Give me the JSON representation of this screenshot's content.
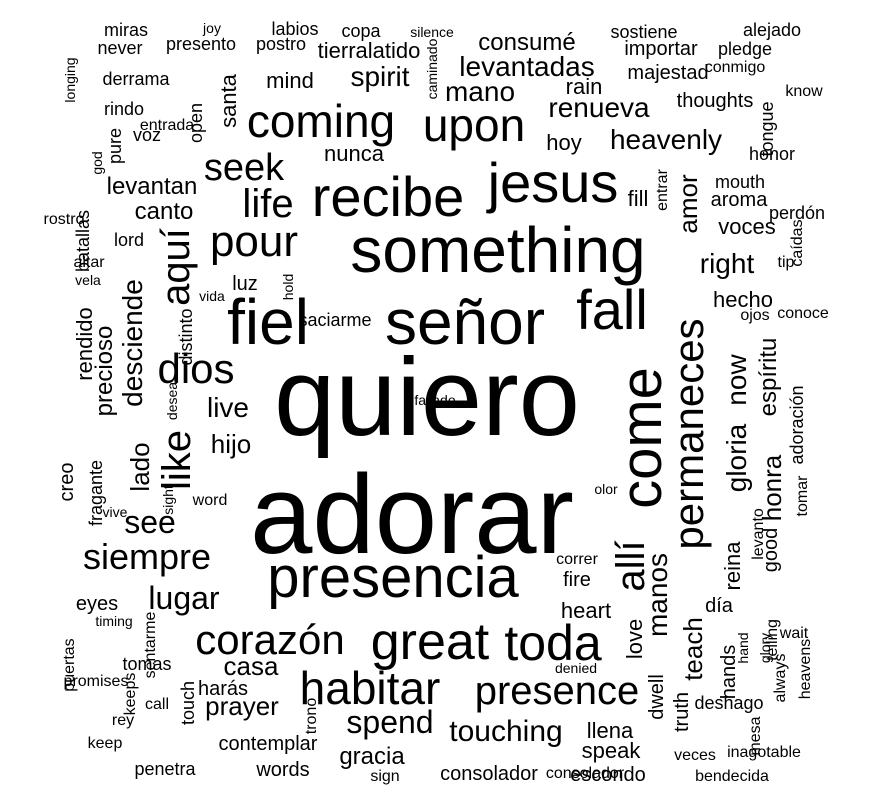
{
  "cloud": {
    "text_color": "#000000",
    "background": "#ffffff",
    "words": [
      {
        "text": "quiero",
        "size": 110,
        "orientation": "h"
      },
      {
        "text": "adorar",
        "size": 112,
        "orientation": "h"
      },
      {
        "text": "something",
        "size": 64,
        "orientation": "h"
      },
      {
        "text": "señor",
        "size": 64,
        "orientation": "h"
      },
      {
        "text": "fiel",
        "size": 64,
        "orientation": "h"
      },
      {
        "text": "presencia",
        "size": 58,
        "orientation": "h"
      },
      {
        "text": "jesus",
        "size": 56,
        "orientation": "h"
      },
      {
        "text": "recibe",
        "size": 56,
        "orientation": "h"
      },
      {
        "text": "come",
        "size": 58,
        "orientation": "v"
      },
      {
        "text": "permaneces",
        "size": 42,
        "orientation": "v"
      },
      {
        "text": "fall",
        "size": 56,
        "orientation": "h"
      },
      {
        "text": "coming",
        "size": 46,
        "orientation": "h"
      },
      {
        "text": "upon",
        "size": 46,
        "orientation": "h"
      },
      {
        "text": "great",
        "size": 52,
        "orientation": "h"
      },
      {
        "text": "toda",
        "size": 50,
        "orientation": "h"
      },
      {
        "text": "habitar",
        "size": 46,
        "orientation": "h"
      },
      {
        "text": "corazón",
        "size": 42,
        "orientation": "h"
      },
      {
        "text": "pour",
        "size": 44,
        "orientation": "h"
      },
      {
        "text": "life",
        "size": 40,
        "orientation": "h"
      },
      {
        "text": "dios",
        "size": 42,
        "orientation": "h"
      },
      {
        "text": "like",
        "size": 40,
        "orientation": "v"
      },
      {
        "text": "aquí",
        "size": 40,
        "orientation": "v"
      },
      {
        "text": "presence",
        "size": 40,
        "orientation": "h"
      },
      {
        "text": "allí",
        "size": 40,
        "orientation": "v"
      },
      {
        "text": "seek",
        "size": 38,
        "orientation": "h"
      },
      {
        "text": "siempre",
        "size": 36,
        "orientation": "h"
      },
      {
        "text": "see",
        "size": 32,
        "orientation": "h"
      },
      {
        "text": "spend",
        "size": 32,
        "orientation": "h"
      },
      {
        "text": "touching",
        "size": 30,
        "orientation": "h"
      },
      {
        "text": "lugar",
        "size": 32,
        "orientation": "h"
      },
      {
        "text": "renueva",
        "size": 28,
        "orientation": "h"
      },
      {
        "text": "heavenly",
        "size": 28,
        "orientation": "h"
      },
      {
        "text": "levantadas",
        "size": 28,
        "orientation": "h"
      },
      {
        "text": "spirit",
        "size": 28,
        "orientation": "h"
      },
      {
        "text": "mano",
        "size": 28,
        "orientation": "h"
      },
      {
        "text": "consumé",
        "size": 24,
        "orientation": "h"
      },
      {
        "text": "gloria",
        "size": 28,
        "orientation": "v"
      },
      {
        "text": "now",
        "size": 28,
        "orientation": "v"
      },
      {
        "text": "manos",
        "size": 28,
        "orientation": "v"
      },
      {
        "text": "desciende",
        "size": 28,
        "orientation": "v"
      },
      {
        "text": "live",
        "size": 28,
        "orientation": "h"
      },
      {
        "text": "right",
        "size": 28,
        "orientation": "h"
      },
      {
        "text": "amor",
        "size": 26,
        "orientation": "v"
      },
      {
        "text": "teach",
        "size": 26,
        "orientation": "v"
      },
      {
        "text": "honra",
        "size": 26,
        "orientation": "v"
      },
      {
        "text": "espíritu",
        "size": 24,
        "orientation": "v"
      },
      {
        "text": "casa",
        "size": 26,
        "orientation": "h"
      },
      {
        "text": "prayer",
        "size": 26,
        "orientation": "h"
      },
      {
        "text": "hijo",
        "size": 26,
        "orientation": "h"
      },
      {
        "text": "lado",
        "size": 26,
        "orientation": "v"
      },
      {
        "text": "precioso",
        "size": 24,
        "orientation": "v"
      },
      {
        "text": "canto",
        "size": 24,
        "orientation": "h"
      },
      {
        "text": "levantan",
        "size": 24,
        "orientation": "h"
      },
      {
        "text": "nunca",
        "size": 22,
        "orientation": "h"
      },
      {
        "text": "gracia",
        "size": 24,
        "orientation": "h"
      },
      {
        "text": "llena",
        "size": 22,
        "orientation": "h"
      },
      {
        "text": "heart",
        "size": 22,
        "orientation": "h"
      },
      {
        "text": "speak",
        "size": 22,
        "orientation": "h"
      },
      {
        "text": "santa",
        "size": 22,
        "orientation": "v"
      },
      {
        "text": "reina",
        "size": 22,
        "orientation": "v"
      },
      {
        "text": "hecho",
        "size": 22,
        "orientation": "h"
      },
      {
        "text": "voces",
        "size": 22,
        "orientation": "h"
      },
      {
        "text": "aroma",
        "size": 20,
        "orientation": "h"
      },
      {
        "text": "mouth",
        "size": 18,
        "orientation": "h"
      },
      {
        "text": "thoughts",
        "size": 20,
        "orientation": "h"
      },
      {
        "text": "majestad",
        "size": 20,
        "orientation": "h"
      },
      {
        "text": "importar",
        "size": 20,
        "orientation": "h"
      },
      {
        "text": "tierralatido",
        "size": 22,
        "orientation": "h"
      },
      {
        "text": "mind",
        "size": 22,
        "orientation": "h"
      },
      {
        "text": "rain",
        "size": 22,
        "orientation": "h"
      },
      {
        "text": "hoy",
        "size": 22,
        "orientation": "h"
      },
      {
        "text": "fill",
        "size": 22,
        "orientation": "h"
      },
      {
        "text": "luz",
        "size": 20,
        "orientation": "h"
      },
      {
        "text": "rendido",
        "size": 22,
        "orientation": "v"
      },
      {
        "text": "love",
        "size": 22,
        "orientation": "v"
      },
      {
        "text": "dwell",
        "size": 20,
        "orientation": "v"
      },
      {
        "text": "truth",
        "size": 20,
        "orientation": "v"
      },
      {
        "text": "fire",
        "size": 20,
        "orientation": "h"
      },
      {
        "text": "día",
        "size": 20,
        "orientation": "h"
      },
      {
        "text": "hands",
        "size": 20,
        "orientation": "v"
      },
      {
        "text": "good",
        "size": 20,
        "orientation": "v"
      },
      {
        "text": "adoración",
        "size": 18,
        "orientation": "v"
      },
      {
        "text": "contemplar",
        "size": 20,
        "orientation": "h"
      },
      {
        "text": "words",
        "size": 20,
        "orientation": "h"
      },
      {
        "text": "consolador",
        "size": 20,
        "orientation": "h"
      },
      {
        "text": "escondo",
        "size": 20,
        "orientation": "h"
      },
      {
        "text": "deshago",
        "size": 18,
        "orientation": "h"
      },
      {
        "text": "touch",
        "size": 18,
        "orientation": "v"
      },
      {
        "text": "harás",
        "size": 20,
        "orientation": "h"
      },
      {
        "text": "tomas",
        "size": 18,
        "orientation": "h"
      },
      {
        "text": "eyes",
        "size": 20,
        "orientation": "h"
      },
      {
        "text": "penetra",
        "size": 18,
        "orientation": "h"
      },
      {
        "text": "saciarme",
        "size": 18,
        "orientation": "h"
      },
      {
        "text": "creo",
        "size": 20,
        "orientation": "v"
      },
      {
        "text": "fragante",
        "size": 18,
        "orientation": "v"
      },
      {
        "text": "distinto",
        "size": 18,
        "orientation": "v"
      },
      {
        "text": "lord",
        "size": 18,
        "orientation": "h"
      },
      {
        "text": "voz",
        "size": 18,
        "orientation": "h"
      },
      {
        "text": "open",
        "size": 18,
        "orientation": "v"
      },
      {
        "text": "batallas",
        "size": 18,
        "orientation": "v"
      },
      {
        "text": "pure",
        "size": 18,
        "orientation": "v"
      },
      {
        "text": "rindo",
        "size": 18,
        "orientation": "h"
      },
      {
        "text": "derrama",
        "size": 18,
        "orientation": "h"
      },
      {
        "text": "presento",
        "size": 18,
        "orientation": "h"
      },
      {
        "text": "postro",
        "size": 18,
        "orientation": "h"
      },
      {
        "text": "copa",
        "size": 18,
        "orientation": "h"
      },
      {
        "text": "miras",
        "size": 18,
        "orientation": "h"
      },
      {
        "text": "never",
        "size": 18,
        "orientation": "h"
      },
      {
        "text": "labios",
        "size": 18,
        "orientation": "h"
      },
      {
        "text": "sostiene",
        "size": 18,
        "orientation": "h"
      },
      {
        "text": "alejado",
        "size": 18,
        "orientation": "h"
      },
      {
        "text": "pledge",
        "size": 18,
        "orientation": "h"
      },
      {
        "text": "conmigo",
        "size": 16,
        "orientation": "h"
      },
      {
        "text": "know",
        "size": 16,
        "orientation": "h"
      },
      {
        "text": "tongue",
        "size": 18,
        "orientation": "v"
      },
      {
        "text": "honor",
        "size": 18,
        "orientation": "h"
      },
      {
        "text": "perdón",
        "size": 18,
        "orientation": "h"
      },
      {
        "text": "caídas",
        "size": 16,
        "orientation": "v"
      },
      {
        "text": "tip",
        "size": 16,
        "orientation": "h"
      },
      {
        "text": "ojos",
        "size": 16,
        "orientation": "h"
      },
      {
        "text": "conoce",
        "size": 16,
        "orientation": "h"
      },
      {
        "text": "tomar",
        "size": 16,
        "orientation": "v"
      },
      {
        "text": "levanto",
        "size": 16,
        "orientation": "v"
      },
      {
        "text": "wait",
        "size": 16,
        "orientation": "h"
      },
      {
        "text": "heavens",
        "size": 16,
        "orientation": "v"
      },
      {
        "text": "always",
        "size": 16,
        "orientation": "v"
      },
      {
        "text": "telling",
        "size": 16,
        "orientation": "v"
      },
      {
        "text": "glory",
        "size": 14,
        "orientation": "v"
      },
      {
        "text": "hand",
        "size": 14,
        "orientation": "v"
      },
      {
        "text": "mesa",
        "size": 16,
        "orientation": "v"
      },
      {
        "text": "inagotable",
        "size": 16,
        "orientation": "h"
      },
      {
        "text": "veces",
        "size": 16,
        "orientation": "h"
      },
      {
        "text": "bendecida",
        "size": 16,
        "orientation": "h"
      },
      {
        "text": "consolador",
        "size": 16,
        "orientation": "h"
      },
      {
        "text": "sign",
        "size": 16,
        "orientation": "h"
      },
      {
        "text": "denied",
        "size": 14,
        "orientation": "h"
      },
      {
        "text": "correr",
        "size": 16,
        "orientation": "h"
      },
      {
        "text": "olor",
        "size": 14,
        "orientation": "h"
      },
      {
        "text": "entrar",
        "size": 16,
        "orientation": "v"
      },
      {
        "text": "trono",
        "size": 16,
        "orientation": "v"
      },
      {
        "text": "call",
        "size": 16,
        "orientation": "h"
      },
      {
        "text": "keeps",
        "size": 16,
        "orientation": "v"
      },
      {
        "text": "rey",
        "size": 16,
        "orientation": "h"
      },
      {
        "text": "keep",
        "size": 16,
        "orientation": "h"
      },
      {
        "text": "promises",
        "size": 16,
        "orientation": "h"
      },
      {
        "text": "puertas",
        "size": 16,
        "orientation": "v"
      },
      {
        "text": "sentarme",
        "size": 16,
        "orientation": "v"
      },
      {
        "text": "timing",
        "size": 14,
        "orientation": "h"
      },
      {
        "text": "word",
        "size": 16,
        "orientation": "h"
      },
      {
        "text": "sight",
        "size": 14,
        "orientation": "v"
      },
      {
        "text": "vive",
        "size": 14,
        "orientation": "h"
      },
      {
        "text": "desea",
        "size": 14,
        "orientation": "v"
      },
      {
        "text": "vida",
        "size": 14,
        "orientation": "h"
      },
      {
        "text": "hold",
        "size": 14,
        "orientation": "v"
      },
      {
        "text": "vela",
        "size": 14,
        "orientation": "h"
      },
      {
        "text": "altar",
        "size": 16,
        "orientation": "h"
      },
      {
        "text": "rostro",
        "size": 16,
        "orientation": "h"
      },
      {
        "text": "god",
        "size": 14,
        "orientation": "v"
      },
      {
        "text": "entrada",
        "size": 16,
        "orientation": "h"
      },
      {
        "text": "longing",
        "size": 14,
        "orientation": "v"
      },
      {
        "text": "caminado",
        "size": 14,
        "orientation": "v"
      },
      {
        "text": "joy",
        "size": 14,
        "orientation": "h"
      },
      {
        "text": "silence",
        "size": 14,
        "orientation": "h"
      },
      {
        "text": "fallado",
        "size": 14,
        "orientation": "h"
      }
    ]
  }
}
